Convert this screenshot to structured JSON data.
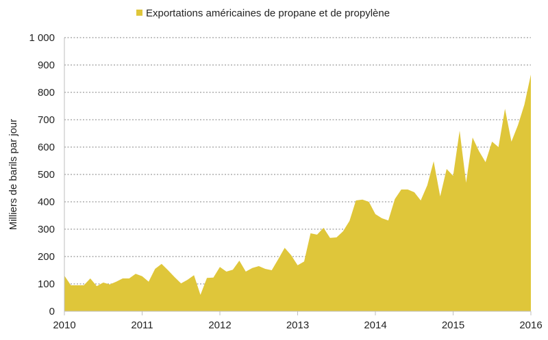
{
  "chart_data": {
    "type": "area",
    "title": "",
    "xlabel": "",
    "ylabel": "Milliers de barils par jour",
    "legend": {
      "position": "top",
      "entries": [
        "Exportations américaines de propane et de propylène"
      ]
    },
    "grid": {
      "y": true,
      "style": "dotted"
    },
    "ylim": [
      0,
      1000
    ],
    "y_ticks": [
      0,
      100,
      200,
      300,
      400,
      500,
      600,
      700,
      800,
      900,
      1000
    ],
    "y_tick_labels": [
      "0",
      "100",
      "200",
      "300",
      "400",
      "500",
      "600",
      "700",
      "800",
      "900",
      "1 000"
    ],
    "x_ticks": [
      "2010",
      "2011",
      "2012",
      "2013",
      "2014",
      "2015",
      "2016"
    ],
    "x_range": [
      "2010-01",
      "2016-01"
    ],
    "x_frequency": "monthly",
    "series": [
      {
        "name": "Exportations américaines de propane et de propylène",
        "color": "#dfc63a",
        "values": [
          130,
          95,
          95,
          95,
          120,
          92,
          105,
          98,
          108,
          120,
          120,
          137,
          128,
          108,
          155,
          173,
          150,
          125,
          102,
          115,
          132,
          60,
          122,
          123,
          162,
          145,
          152,
          185,
          145,
          158,
          165,
          155,
          150,
          190,
          232,
          205,
          168,
          182,
          285,
          280,
          305,
          268,
          270,
          292,
          330,
          405,
          408,
          400,
          355,
          340,
          332,
          410,
          445,
          445,
          435,
          405,
          460,
          548,
          420,
          520,
          495,
          660,
          470,
          635,
          585,
          545,
          620,
          600,
          740,
          620,
          680,
          755,
          865
        ]
      }
    ]
  }
}
